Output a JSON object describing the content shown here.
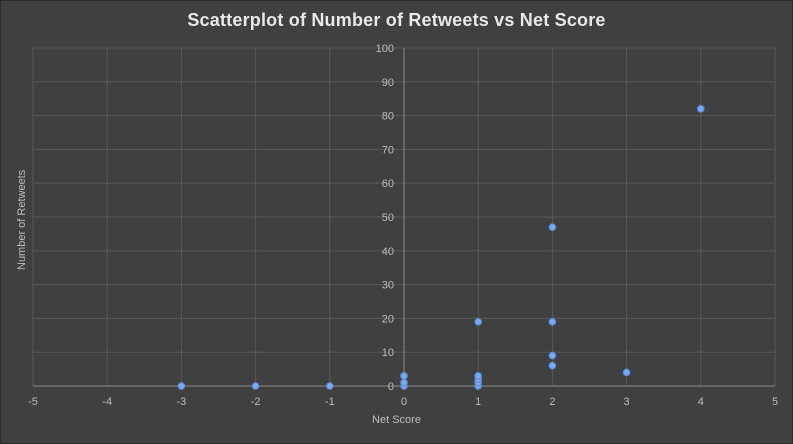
{
  "chart_data": {
    "type": "scatter",
    "title": "Scatterplot of Number of Retweets vs Net Score",
    "xlabel": "Net Score",
    "ylabel": "Number of Retweets",
    "xlim": [
      -5,
      5
    ],
    "ylim": [
      0,
      100
    ],
    "x_ticks": [
      -5,
      -4,
      -3,
      -2,
      -1,
      0,
      1,
      2,
      3,
      4,
      5
    ],
    "y_ticks": [
      0,
      10,
      20,
      30,
      40,
      50,
      60,
      70,
      80,
      90,
      100
    ],
    "grid": true,
    "legend": "none",
    "point_color": "#5b8fe0",
    "background_color": "#404040",
    "grid_color": "#595959",
    "series": [
      {
        "points": [
          {
            "x": -3,
            "y": 0
          },
          {
            "x": -2,
            "y": 0
          },
          {
            "x": -1,
            "y": 0
          },
          {
            "x": 0,
            "y": 0
          },
          {
            "x": 0,
            "y": 1
          },
          {
            "x": 0,
            "y": 3
          },
          {
            "x": 1,
            "y": 0
          },
          {
            "x": 1,
            "y": 1
          },
          {
            "x": 1,
            "y": 2
          },
          {
            "x": 1,
            "y": 3
          },
          {
            "x": 1,
            "y": 19
          },
          {
            "x": 2,
            "y": 6
          },
          {
            "x": 2,
            "y": 9
          },
          {
            "x": 2,
            "y": 19
          },
          {
            "x": 2,
            "y": 47
          },
          {
            "x": 3,
            "y": 4
          },
          {
            "x": 4,
            "y": 82
          }
        ]
      }
    ]
  }
}
